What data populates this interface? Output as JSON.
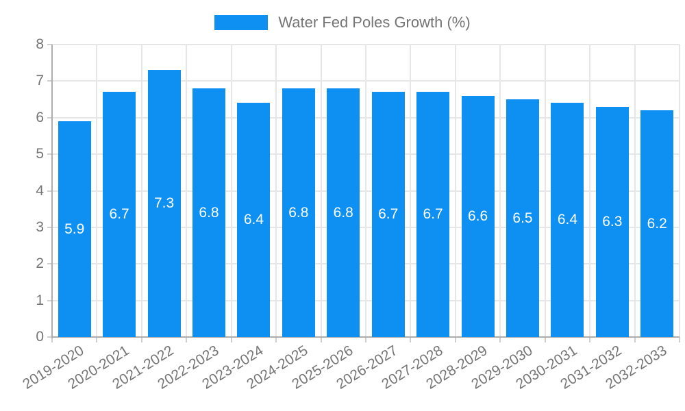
{
  "chart_data": {
    "type": "bar",
    "title": "",
    "xlabel": "",
    "ylabel": "",
    "legend_position": "top",
    "legend_label": "Water Fed Poles Growth (%)",
    "categories": [
      "2019-2020",
      "2020-2021",
      "2021-2022",
      "2022-2023",
      "2023-2024",
      "2024-2025",
      "2025-2026",
      "2026-2027",
      "2027-2028",
      "2028-2029",
      "2029-2030",
      "2030-2031",
      "2031-2032",
      "2032-2033"
    ],
    "values": [
      5.9,
      6.7,
      7.3,
      6.8,
      6.4,
      6.8,
      6.8,
      6.7,
      6.7,
      6.6,
      6.5,
      6.4,
      6.3,
      6.2
    ],
    "value_labels": [
      "5.9",
      "6.7",
      "7.3",
      "6.8",
      "6.4",
      "6.8",
      "6.8",
      "6.7",
      "6.7",
      "6.6",
      "6.5",
      "6.4",
      "6.3",
      "6.2"
    ],
    "ylim": [
      0,
      8
    ],
    "ytick_step": 1,
    "ytick_labels": [
      "0",
      "1",
      "2",
      "3",
      "4",
      "5",
      "6",
      "7",
      "8"
    ],
    "grid": true,
    "bar_color": "#0d90f2",
    "value_label_color": "#ffffff",
    "axis_text_color": "#757575",
    "gridline_color": "#e6e6e6",
    "axis_line_color": "#adadad"
  }
}
